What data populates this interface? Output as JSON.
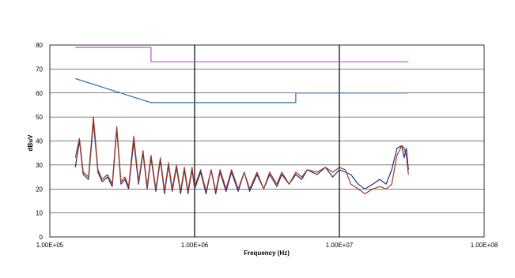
{
  "chart_data": {
    "type": "line",
    "title": "",
    "xlabel": "Frequency (Hz)",
    "ylabel": "dBuV",
    "x_scale": "log",
    "xlim": [
      100000,
      100000000
    ],
    "ylim": [
      0,
      80
    ],
    "x_tick_labels": [
      "1.00E+05",
      "1.00E+06",
      "1.00E+07",
      "1.00E+08"
    ],
    "x_tick_values": [
      100000,
      1000000,
      10000000,
      100000000
    ],
    "y_tick_labels": [
      "0",
      "10",
      "20",
      "30",
      "40",
      "50",
      "60",
      "70",
      "80"
    ],
    "y_tick_values": [
      0,
      10,
      20,
      30,
      40,
      50,
      60,
      70,
      80
    ],
    "grid": "horizontal at each 10 dBuV, vertical at each decade",
    "legend": "none",
    "series": [
      {
        "color": "#b05cc0",
        "x": [
          150000,
          500000,
          500000,
          30000000
        ],
        "y": [
          79,
          79,
          73,
          73
        ]
      },
      {
        "color": "#2f6ea8",
        "x": [
          150000,
          500000,
          5000000,
          5000000,
          30000000
        ],
        "y": [
          66,
          56,
          56,
          60,
          60
        ]
      },
      {
        "color": "#1e2f80",
        "x": [
          150000,
          160000,
          170000,
          185000,
          200000,
          215000,
          230000,
          250000,
          270000,
          290000,
          310000,
          330000,
          350000,
          380000,
          410000,
          440000,
          470000,
          500000,
          540000,
          580000,
          620000,
          660000,
          700000,
          750000,
          800000,
          850000,
          900000,
          960000,
          1000000,
          1100000,
          1200000,
          1300000,
          1400000,
          1500000,
          1650000,
          1800000,
          2000000,
          2200000,
          2400000,
          2700000,
          3000000,
          3300000,
          3700000,
          4000000,
          4500000,
          5000000,
          5500000,
          6000000,
          7000000,
          8000000,
          9000000,
          10000000,
          11000000,
          12000000,
          13500000,
          15000000,
          17000000,
          19000000,
          21000000,
          23000000,
          25000000,
          27000000,
          28000000,
          29000000,
          30000000
        ],
        "y": [
          29,
          40,
          26,
          24,
          48,
          27,
          23,
          25,
          21,
          45,
          22,
          24,
          20,
          40,
          22,
          35,
          20,
          33,
          19,
          32,
          18,
          30,
          19,
          29,
          18,
          28,
          18,
          28,
          20,
          27,
          18,
          28,
          18,
          27,
          19,
          27,
          19,
          27,
          19,
          26,
          20,
          26,
          21,
          26,
          22,
          26,
          24,
          28,
          26,
          29,
          25,
          28,
          27,
          26,
          22,
          20,
          22,
          24,
          22,
          28,
          37,
          38,
          33,
          37,
          28
        ]
      },
      {
        "color": "#a0381c",
        "x": [
          150000,
          160000,
          170000,
          185000,
          200000,
          215000,
          230000,
          250000,
          270000,
          290000,
          310000,
          330000,
          350000,
          380000,
          410000,
          440000,
          470000,
          500000,
          540000,
          580000,
          620000,
          660000,
          700000,
          750000,
          800000,
          850000,
          900000,
          960000,
          1000000,
          1100000,
          1200000,
          1300000,
          1400000,
          1500000,
          1650000,
          1800000,
          2000000,
          2200000,
          2400000,
          2700000,
          3000000,
          3300000,
          3700000,
          4000000,
          4500000,
          5000000,
          5500000,
          6000000,
          7000000,
          8000000,
          9000000,
          10000000,
          11000000,
          12000000,
          13500000,
          15000000,
          17000000,
          19000000,
          21000000,
          23000000,
          25000000,
          27000000,
          28000000,
          29000000,
          30000000
        ],
        "y": [
          33,
          41,
          27,
          25,
          50,
          28,
          24,
          26,
          22,
          46,
          23,
          25,
          21,
          42,
          23,
          36,
          21,
          34,
          20,
          33,
          19,
          31,
          20,
          30,
          19,
          29,
          19,
          29,
          21,
          28,
          19,
          28,
          19,
          28,
          20,
          28,
          20,
          27,
          20,
          27,
          20,
          27,
          22,
          27,
          22,
          27,
          25,
          28,
          27,
          29,
          27,
          29,
          28,
          22,
          20,
          18,
          20,
          21,
          20,
          22,
          34,
          38,
          37,
          34,
          26
        ]
      }
    ]
  }
}
